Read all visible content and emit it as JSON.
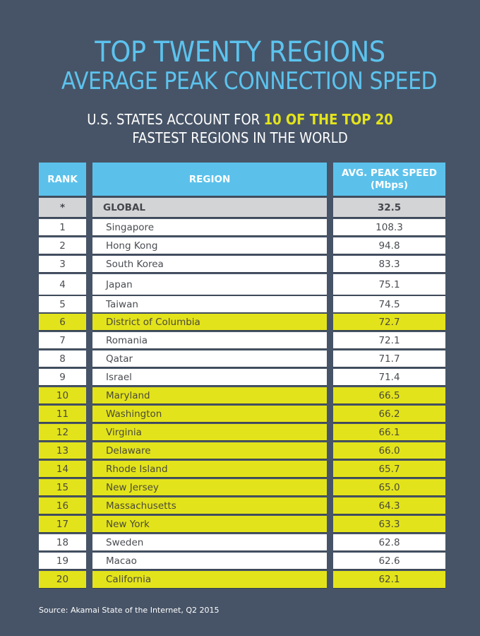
{
  "header": {
    "title_line1": "TOP TWENTY REGIONS",
    "title_line2": "AVERAGE PEAK CONNECTION SPEED",
    "subtitle_part1": "U.S. STATES ACCOUNT FOR",
    "subtitle_highlight": "10 OF THE TOP 20",
    "subtitle_line2": "FASTEST REGIONS IN THE WORLD"
  },
  "table": {
    "columns": {
      "rank": "RANK",
      "region": "REGION",
      "speed_line1": "AVG. PEAK SPEED",
      "speed_line2": "(Mbps)"
    },
    "global": {
      "rank": "*",
      "region": "GLOBAL",
      "speed": "32.5"
    },
    "rows": [
      {
        "rank": "1",
        "region": "Singapore",
        "speed": "108.3",
        "us_state": false
      },
      {
        "rank": "2",
        "region": "Hong Kong",
        "speed": "94.8",
        "us_state": false
      },
      {
        "rank": "3",
        "region": "South Korea",
        "speed": "83.3",
        "us_state": false
      },
      {
        "rank": "4",
        "region": "Japan",
        "speed": "75.1",
        "us_state": false
      },
      {
        "rank": "5",
        "region": "Taiwan",
        "speed": "74.5",
        "us_state": false
      },
      {
        "rank": "6",
        "region": "District of Columbia",
        "speed": "72.7",
        "us_state": true
      },
      {
        "rank": "7",
        "region": "Romania",
        "speed": "72.1",
        "us_state": false
      },
      {
        "rank": "8",
        "region": "Qatar",
        "speed": "71.7",
        "us_state": false
      },
      {
        "rank": "9",
        "region": "Israel",
        "speed": "71.4",
        "us_state": false
      },
      {
        "rank": "10",
        "region": "Maryland",
        "speed": "66.5",
        "us_state": true
      },
      {
        "rank": "11",
        "region": "Washington",
        "speed": "66.2",
        "us_state": true
      },
      {
        "rank": "12",
        "region": "Virginia",
        "speed": "66.1",
        "us_state": true
      },
      {
        "rank": "13",
        "region": "Delaware",
        "speed": "66.0",
        "us_state": true
      },
      {
        "rank": "14",
        "region": "Rhode Island",
        "speed": "65.7",
        "us_state": true
      },
      {
        "rank": "15",
        "region": "New Jersey",
        "speed": "65.0",
        "us_state": true
      },
      {
        "rank": "16",
        "region": "Massachusetts",
        "speed": "64.3",
        "us_state": true
      },
      {
        "rank": "17",
        "region": "New York",
        "speed": "63.3",
        "us_state": true
      },
      {
        "rank": "18",
        "region": "Sweden",
        "speed": "62.8",
        "us_state": false
      },
      {
        "rank": "19",
        "region": "Macao",
        "speed": "62.6",
        "us_state": false
      },
      {
        "rank": "20",
        "region": "California",
        "speed": "62.1",
        "us_state": true
      }
    ]
  },
  "colors": {
    "background": "#475467",
    "title_blue": "#5cc3ee",
    "header_blue": "#5bc1eb",
    "highlight_yellow": "#e3e31b",
    "global_gray": "#d3d4d6"
  },
  "source": "Source: Akamai State of the Internet, Q2 2015",
  "chart_data": {
    "type": "table",
    "title": "TOP TWENTY REGIONS AVERAGE PEAK CONNECTION SPEED",
    "subtitle": "U.S. STATES ACCOUNT FOR 10 OF THE TOP 20 FASTEST REGIONS IN THE WORLD",
    "columns": [
      "RANK",
      "REGION",
      "AVG. PEAK SPEED (Mbps)"
    ],
    "global": {
      "region": "GLOBAL",
      "value": 32.5
    },
    "categories": [
      "Singapore",
      "Hong Kong",
      "South Korea",
      "Japan",
      "Taiwan",
      "District of Columbia",
      "Romania",
      "Qatar",
      "Israel",
      "Maryland",
      "Washington",
      "Virginia",
      "Delaware",
      "Rhode Island",
      "New Jersey",
      "Massachusetts",
      "New York",
      "Sweden",
      "Macao",
      "California"
    ],
    "values": [
      108.3,
      94.8,
      83.3,
      75.1,
      74.5,
      72.7,
      72.1,
      71.7,
      71.4,
      66.5,
      66.2,
      66.1,
      66.0,
      65.7,
      65.0,
      64.3,
      63.3,
      62.8,
      62.6,
      62.1
    ],
    "highlighted_us": [
      "District of Columbia",
      "Maryland",
      "Washington",
      "Virginia",
      "Delaware",
      "Rhode Island",
      "New Jersey",
      "Massachusetts",
      "New York",
      "California"
    ],
    "unit": "Mbps",
    "source": "Akamai State of the Internet, Q2 2015"
  }
}
